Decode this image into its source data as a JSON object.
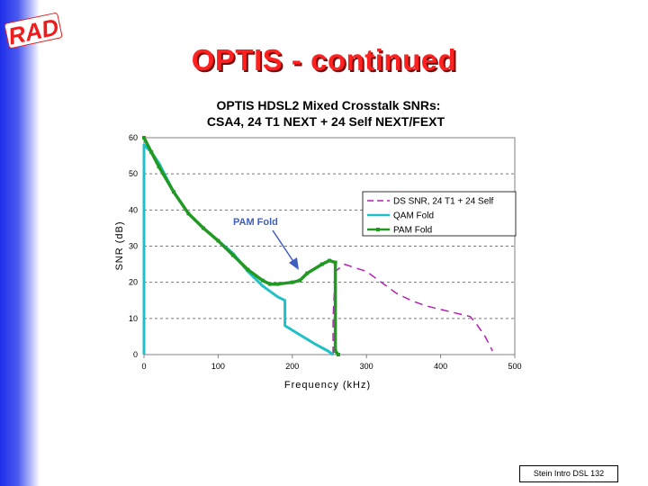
{
  "slide": {
    "logo_text": "RAD",
    "title": "OPTIS - continued",
    "footer": "Stein Intro DSL 132"
  },
  "colors": {
    "title": "#ff2020",
    "ds_snr": "#b020b0",
    "qam": "#20c0c8",
    "pam": "#229922",
    "annotation": "#3e5fc0"
  },
  "chart_data": {
    "type": "line",
    "title": "OPTIS HDSL2 Mixed Crosstalk SNRs:",
    "subtitle": "CSA4, 24 T1 NEXT + 24 Self NEXT/FEXT",
    "xlabel": "Frequency (kHz)",
    "ylabel": "SNR (dB)",
    "xlim": [
      0,
      500
    ],
    "ylim": [
      0,
      60
    ],
    "xticks": [
      "0",
      "100",
      "200",
      "300",
      "400",
      "500"
    ],
    "yticks": [
      "0",
      "10",
      "20",
      "30",
      "40",
      "50",
      "60"
    ],
    "grid": "horizontal",
    "legend": "right",
    "annotation": "PAM Fold",
    "series": [
      {
        "name": "DS SNR, 24 T1 + 24 Self",
        "style": "dashed",
        "points": [
          [
            255,
            0
          ],
          [
            255,
            10
          ],
          [
            258,
            23
          ],
          [
            270,
            25
          ],
          [
            285,
            24
          ],
          [
            300,
            23
          ],
          [
            320,
            20
          ],
          [
            340,
            17
          ],
          [
            360,
            15
          ],
          [
            380,
            13.5
          ],
          [
            400,
            12.5
          ],
          [
            420,
            11.5
          ],
          [
            440,
            10.5
          ],
          [
            450,
            8
          ],
          [
            460,
            5
          ],
          [
            470,
            1
          ]
        ]
      },
      {
        "name": "QAM Fold",
        "style": "solid",
        "points": [
          [
            0,
            0
          ],
          [
            0,
            58
          ],
          [
            10,
            56
          ],
          [
            20,
            53
          ],
          [
            40,
            45
          ],
          [
            60,
            39
          ],
          [
            80,
            35
          ],
          [
            100,
            31.5
          ],
          [
            120,
            28
          ],
          [
            140,
            23
          ],
          [
            160,
            19
          ],
          [
            180,
            16
          ],
          [
            190,
            15
          ],
          [
            190,
            8
          ],
          [
            210,
            5.5
          ],
          [
            230,
            3
          ],
          [
            248,
            1
          ],
          [
            255,
            0
          ]
        ]
      },
      {
        "name": "PAM Fold",
        "style": "solid-markers",
        "points": [
          [
            0,
            60
          ],
          [
            10,
            56
          ],
          [
            20,
            52
          ],
          [
            40,
            45
          ],
          [
            60,
            39
          ],
          [
            80,
            35
          ],
          [
            100,
            31.5
          ],
          [
            120,
            27.5
          ],
          [
            140,
            23.5
          ],
          [
            160,
            20.5
          ],
          [
            170,
            19.5
          ],
          [
            180,
            19.5
          ],
          [
            200,
            20
          ],
          [
            210,
            20.5
          ],
          [
            220,
            22.5
          ],
          [
            240,
            25
          ],
          [
            250,
            26
          ],
          [
            258,
            25.5
          ],
          [
            258,
            1
          ],
          [
            262,
            0
          ]
        ]
      }
    ]
  }
}
